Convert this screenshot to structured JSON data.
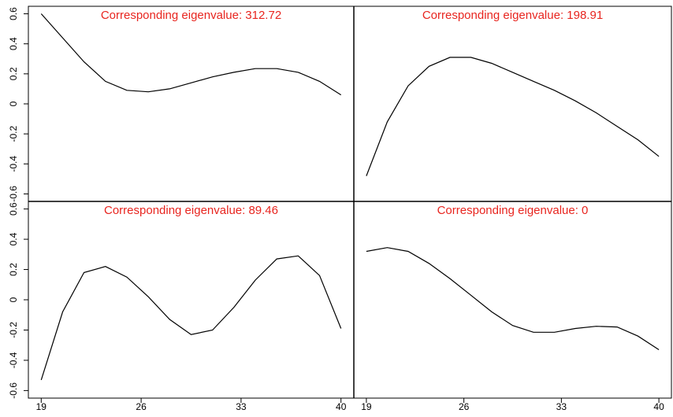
{
  "chart_data": [
    {
      "type": "line",
      "title": "Corresponding eigenvalue: 312.72",
      "title_color": "#e8251f",
      "color": "#000000",
      "x": [
        19,
        20.5,
        22,
        23.5,
        25,
        26.5,
        28,
        29.5,
        31,
        32.5,
        34,
        35.5,
        37,
        38.5,
        40
      ],
      "values": [
        0.6,
        0.44,
        0.28,
        0.15,
        0.09,
        0.08,
        0.1,
        0.14,
        0.18,
        0.21,
        0.235,
        0.235,
        0.21,
        0.15,
        0.06
      ],
      "xlim": [
        18.1,
        40.9
      ],
      "ylim": [
        -0.65,
        0.65
      ],
      "yticks": [
        -0.6,
        -0.4,
        -0.2,
        0,
        0.2,
        0.4,
        0.6
      ]
    },
    {
      "type": "line",
      "title": "Corresponding eigenvalue: 198.91",
      "title_color": "#e8251f",
      "color": "#000000",
      "x": [
        19,
        20.5,
        22,
        23.5,
        25,
        26.5,
        28,
        29.5,
        31,
        32.5,
        34,
        35.5,
        37,
        38.5,
        40
      ],
      "values": [
        -0.48,
        -0.12,
        0.12,
        0.25,
        0.31,
        0.31,
        0.27,
        0.21,
        0.15,
        0.09,
        0.02,
        -0.06,
        -0.15,
        -0.24,
        -0.35
      ],
      "xlim": [
        18.1,
        40.9
      ],
      "ylim": [
        -0.65,
        0.65
      ]
    },
    {
      "type": "line",
      "title": "Corresponding eigenvalue: 89.46",
      "title_color": "#e8251f",
      "color": "#000000",
      "x": [
        19,
        20.5,
        22,
        23.5,
        25,
        26.5,
        28,
        29.5,
        31,
        32.5,
        34,
        35.5,
        37,
        38.5,
        40
      ],
      "values": [
        -0.53,
        -0.08,
        0.18,
        0.22,
        0.15,
        0.02,
        -0.13,
        -0.23,
        -0.2,
        -0.05,
        0.13,
        0.27,
        0.29,
        0.16,
        -0.19
      ],
      "xlim": [
        18.1,
        40.9
      ],
      "ylim": [
        -0.65,
        0.65
      ],
      "yticks": [
        -0.6,
        -0.4,
        -0.2,
        0,
        0.2,
        0.4,
        0.6
      ],
      "xticks": [
        19,
        26,
        33,
        40
      ]
    },
    {
      "type": "line",
      "title": "Corresponding eigenvalue: 0",
      "title_color": "#e8251f",
      "color": "#000000",
      "x": [
        19,
        20.5,
        22,
        23.5,
        25,
        26.5,
        28,
        29.5,
        31,
        32.5,
        34,
        35.5,
        37,
        38.5,
        40
      ],
      "values": [
        0.32,
        0.345,
        0.32,
        0.24,
        0.14,
        0.03,
        -0.08,
        -0.17,
        -0.215,
        -0.215,
        -0.19,
        -0.175,
        -0.18,
        -0.24,
        -0.33
      ],
      "xlim": [
        18.1,
        40.9
      ],
      "ylim": [
        -0.65,
        0.65
      ],
      "xticks": [
        19,
        26,
        33,
        40
      ]
    }
  ]
}
